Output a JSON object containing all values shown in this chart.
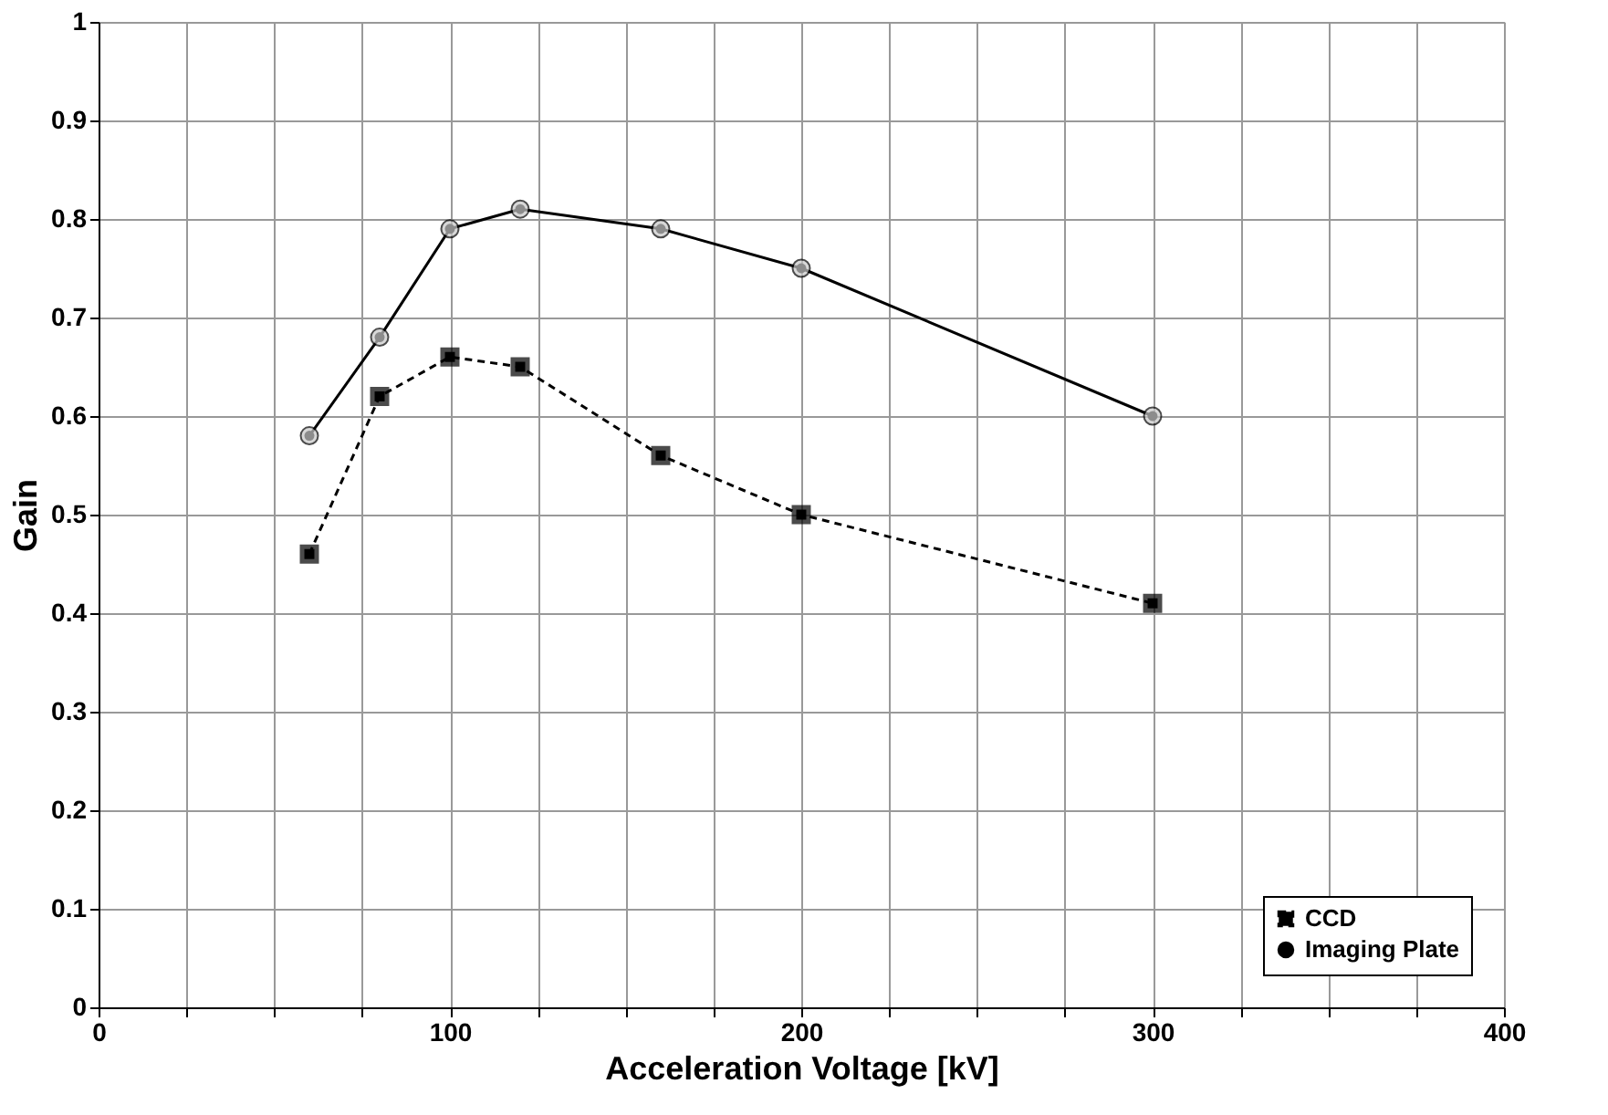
{
  "chart_data": {
    "type": "line",
    "xlabel": "Acceleration Voltage [kV]",
    "ylabel": "Gain",
    "xlim": [
      0,
      400
    ],
    "ylim": [
      0,
      1
    ],
    "xticks": [
      0,
      {
        "value": 25,
        "label": null
      },
      {
        "value": 50,
        "label": null
      },
      {
        "value": 75,
        "label": null
      },
      100,
      {
        "value": 125,
        "label": null
      },
      {
        "value": 150,
        "label": null
      },
      {
        "value": 175,
        "label": null
      },
      200,
      {
        "value": 225,
        "label": null
      },
      {
        "value": 250,
        "label": null
      },
      {
        "value": 275,
        "label": null
      },
      300,
      {
        "value": 325,
        "label": null
      },
      {
        "value": 350,
        "label": null
      },
      {
        "value": 375,
        "label": null
      },
      400
    ],
    "yticks": [
      0,
      0.1,
      0.2,
      0.3,
      0.4,
      0.5,
      0.6,
      0.7,
      0.8,
      0.9,
      1
    ],
    "grid": true,
    "legend": "bottom right",
    "series": [
      {
        "name": "CCD",
        "color": "#000000",
        "marker": "square",
        "line_style": "dashed",
        "x": [
          60,
          80,
          100,
          120,
          160,
          200,
          300
        ],
        "values": [
          0.46,
          0.62,
          0.66,
          0.65,
          0.56,
          0.5,
          0.41
        ]
      },
      {
        "name": "Imaging Plate",
        "color": "#000000",
        "marker": "circle",
        "line_style": "solid",
        "x": [
          60,
          80,
          100,
          120,
          160,
          200,
          300
        ],
        "values": [
          0.58,
          0.68,
          0.79,
          0.81,
          0.79,
          0.75,
          0.6
        ]
      }
    ]
  }
}
